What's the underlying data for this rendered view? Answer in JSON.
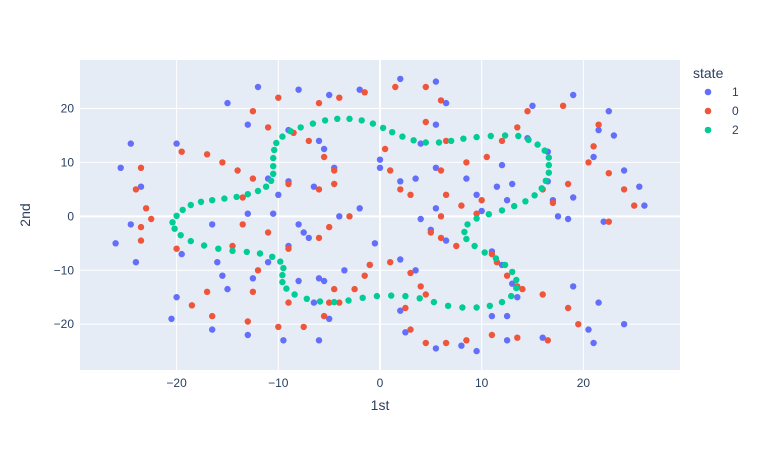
{
  "chart_data": {
    "type": "scatter",
    "title": "",
    "xlabel": "1st",
    "ylabel": "2nd",
    "xlim": [
      -29.5,
      29.5
    ],
    "ylim": [
      -28.5,
      29
    ],
    "xticks": [
      -20,
      -10,
      0,
      10,
      20
    ],
    "yticks": [
      -20,
      -10,
      0,
      10,
      20
    ],
    "grid": true,
    "plot_bg": "#e5ecf6",
    "grid_color": "#ffffff",
    "legend": {
      "title": "state",
      "position": "right"
    },
    "series": [
      {
        "name": "1",
        "color": "#636efa",
        "points": [
          [
            -12,
            24
          ],
          [
            -8,
            23.5
          ],
          [
            -5,
            22.5
          ],
          [
            -2,
            23.5
          ],
          [
            2,
            25.5
          ],
          [
            5.5,
            25
          ],
          [
            6.5,
            21
          ],
          [
            -15,
            21
          ],
          [
            -13,
            17
          ],
          [
            -20,
            13.5
          ],
          [
            -24.5,
            13.5
          ],
          [
            -25.5,
            9
          ],
          [
            -23.5,
            5.5
          ],
          [
            -24.5,
            -1.5
          ],
          [
            -26,
            -5
          ],
          [
            -24,
            -8.5
          ],
          [
            -19.5,
            -7
          ],
          [
            -20,
            -15
          ],
          [
            -20.5,
            -19
          ],
          [
            -16.5,
            -21
          ],
          [
            -13,
            -22
          ],
          [
            -9.5,
            -23
          ],
          [
            -6,
            -23
          ],
          [
            -5,
            -19
          ],
          [
            -6.5,
            -16
          ],
          [
            -5.5,
            -12
          ],
          [
            -3.5,
            -10
          ],
          [
            -1,
            -9
          ],
          [
            -9,
            16
          ],
          [
            -6,
            14
          ],
          [
            -5.5,
            12.5
          ],
          [
            -4.5,
            9
          ],
          [
            -6.5,
            5.5
          ],
          [
            -9,
            6.5
          ],
          [
            -11,
            7
          ],
          [
            -10,
            4
          ],
          [
            -13,
            0.5
          ],
          [
            -10.5,
            0.5
          ],
          [
            -8,
            -1.5
          ],
          [
            -7,
            -4
          ],
          [
            -7.5,
            -3
          ],
          [
            -4,
            0
          ],
          [
            -2,
            1.5
          ],
          [
            -9,
            -5.5
          ],
          [
            -12.5,
            -11.5
          ],
          [
            -15,
            -13.5
          ],
          [
            -15.5,
            -11
          ],
          [
            -16,
            -8.5
          ],
          [
            -16.5,
            -1.5
          ],
          [
            -11,
            -8.5
          ],
          [
            -8,
            -12
          ],
          [
            -6,
            -11.5
          ],
          [
            -0.5,
            -5
          ],
          [
            2,
            -8
          ],
          [
            3.5,
            -10
          ],
          [
            2,
            -17.5
          ],
          [
            2.5,
            -21.5
          ],
          [
            5.5,
            -24.5
          ],
          [
            8,
            -24
          ],
          [
            9.5,
            -25
          ],
          [
            11,
            -18.5
          ],
          [
            12.5,
            -18.5
          ],
          [
            12.5,
            -23
          ],
          [
            16,
            -22.5
          ],
          [
            19,
            -13
          ],
          [
            20.5,
            -21
          ],
          [
            21,
            -23.5
          ],
          [
            21.5,
            -16
          ],
          [
            24,
            -20
          ],
          [
            0,
            10.5
          ],
          [
            0,
            9
          ],
          [
            2,
            6.5
          ],
          [
            3.5,
            7
          ],
          [
            4,
            13.5
          ],
          [
            5.5,
            17
          ],
          [
            5.5,
            9
          ],
          [
            8.5,
            7
          ],
          [
            9.5,
            4
          ],
          [
            10,
            1
          ],
          [
            11.5,
            5.5
          ],
          [
            12,
            9.5
          ],
          [
            12.5,
            3
          ],
          [
            13,
            6
          ],
          [
            14.5,
            14.5
          ],
          [
            15,
            20.5
          ],
          [
            16.5,
            12
          ],
          [
            16.5,
            6.5
          ],
          [
            17,
            3
          ],
          [
            17.5,
            0
          ],
          [
            19,
            22.5
          ],
          [
            21.5,
            16
          ],
          [
            22.5,
            19.5
          ],
          [
            23,
            15
          ],
          [
            24,
            8.5
          ],
          [
            25.5,
            5.5
          ],
          [
            26,
            2
          ],
          [
            21,
            11
          ],
          [
            19,
            3.5
          ],
          [
            18.5,
            -0.5
          ],
          [
            22,
            -1
          ],
          [
            4,
            -0.5
          ],
          [
            5,
            -2.5
          ],
          [
            5.5,
            1.5
          ],
          [
            6.5,
            -4.5
          ],
          [
            11,
            -6.5
          ],
          [
            12,
            -9
          ],
          [
            13,
            -12.5
          ],
          [
            13.5,
            -15
          ]
        ]
      },
      {
        "name": "0",
        "color": "#ef553b",
        "points": [
          [
            -10,
            22
          ],
          [
            -6,
            21
          ],
          [
            -4,
            22
          ],
          [
            -1.5,
            23
          ],
          [
            1.5,
            24
          ],
          [
            4.5,
            24
          ],
          [
            6,
            21.5
          ],
          [
            -12.5,
            19.5
          ],
          [
            -11,
            16.5
          ],
          [
            -8.5,
            15.5
          ],
          [
            -7,
            14
          ],
          [
            -5.5,
            11
          ],
          [
            -4.5,
            8.5
          ],
          [
            -4.5,
            6
          ],
          [
            -6,
            5
          ],
          [
            -9,
            6
          ],
          [
            -12.5,
            7
          ],
          [
            -14,
            8.5
          ],
          [
            -15.5,
            10
          ],
          [
            -17,
            11.5
          ],
          [
            -19.5,
            12
          ],
          [
            -23.5,
            9
          ],
          [
            -24,
            5
          ],
          [
            -23,
            1.5
          ],
          [
            -22.5,
            -0.5
          ],
          [
            -23.5,
            -2
          ],
          [
            -23.5,
            -4.5
          ],
          [
            -20,
            -6
          ],
          [
            -18.5,
            -16.5
          ],
          [
            -17,
            -14
          ],
          [
            -16.5,
            -18.5
          ],
          [
            -13,
            -19.5
          ],
          [
            -10,
            -20.5
          ],
          [
            -7.5,
            -20.5
          ],
          [
            -5.5,
            -18.5
          ],
          [
            -4,
            -16
          ],
          [
            -2.5,
            -13.5
          ],
          [
            -1.5,
            -11
          ],
          [
            -1,
            -9
          ],
          [
            1,
            -8.5
          ],
          [
            3,
            -10.5
          ],
          [
            4,
            -13
          ],
          [
            4.5,
            -14.5
          ],
          [
            2.5,
            -17
          ],
          [
            3,
            -21
          ],
          [
            4.5,
            -23.5
          ],
          [
            6.5,
            -23.5
          ],
          [
            8.5,
            -23
          ],
          [
            11,
            -22
          ],
          [
            13.5,
            -22.5
          ],
          [
            16.5,
            -23
          ],
          [
            18.5,
            -17
          ],
          [
            19.5,
            -20
          ],
          [
            -13.5,
            3.5
          ],
          [
            -13.5,
            -1.5
          ],
          [
            -11,
            -3
          ],
          [
            -9,
            -6
          ],
          [
            -6,
            -4
          ],
          [
            -5,
            -2
          ],
          [
            -3,
            0
          ],
          [
            -14.5,
            -5.5
          ],
          [
            -12,
            -10
          ],
          [
            -12.5,
            -14
          ],
          [
            -9,
            -16
          ],
          [
            -5,
            -16
          ],
          [
            -4.5,
            -13.5
          ],
          [
            0.5,
            12.5
          ],
          [
            1,
            8.5
          ],
          [
            2,
            5
          ],
          [
            3,
            4
          ],
          [
            6,
            8.5
          ],
          [
            6.5,
            4
          ],
          [
            8.5,
            10
          ],
          [
            10.5,
            11
          ],
          [
            12,
            14
          ],
          [
            13.5,
            16.5
          ],
          [
            14.5,
            19.5
          ],
          [
            16,
            5
          ],
          [
            17,
            2.5
          ],
          [
            18.5,
            6
          ],
          [
            18,
            20.5
          ],
          [
            20.5,
            10
          ],
          [
            21.5,
            17
          ],
          [
            22.5,
            8
          ],
          [
            24,
            5
          ],
          [
            25,
            2
          ],
          [
            22.5,
            -1
          ],
          [
            21,
            13
          ],
          [
            4.5,
            17.5
          ],
          [
            6.5,
            14
          ],
          [
            8,
            2
          ],
          [
            9.5,
            0.5
          ],
          [
            10,
            3
          ],
          [
            11,
            -7
          ],
          [
            11.5,
            -8.5
          ],
          [
            12.5,
            -11
          ],
          [
            14,
            -13.5
          ],
          [
            16,
            -14.5
          ],
          [
            6,
            0
          ],
          [
            5,
            -3
          ],
          [
            6,
            -4
          ],
          [
            7.5,
            -5.5
          ],
          [
            13.5,
            -13
          ]
        ]
      },
      {
        "name": "2",
        "color": "#00cc96",
        "points": [
          [
            -20.4,
            -1.1
          ],
          [
            -20.0,
            0.1
          ],
          [
            -19.4,
            1.2
          ],
          [
            -18.6,
            2.1
          ],
          [
            -17.6,
            2.7
          ],
          [
            -16.5,
            3.0
          ],
          [
            -15.3,
            3.3
          ],
          [
            -14.1,
            3.6
          ],
          [
            -13.0,
            4.1
          ],
          [
            -12.0,
            4.7
          ],
          [
            -11.2,
            5.5
          ],
          [
            -10.7,
            6.6
          ],
          [
            -10.5,
            7.9
          ],
          [
            -10.5,
            9.3
          ],
          [
            -10.5,
            10.8
          ],
          [
            -10.4,
            12.3
          ],
          [
            -10.2,
            13.6
          ],
          [
            -9.6,
            14.8
          ],
          [
            -8.8,
            15.8
          ],
          [
            -7.8,
            16.5
          ],
          [
            -6.6,
            17.2
          ],
          [
            -5.4,
            17.8
          ],
          [
            -4.2,
            18.1
          ],
          [
            -3.0,
            18.1
          ],
          [
            -1.8,
            17.8
          ],
          [
            -0.7,
            17.2
          ],
          [
            0.3,
            16.4
          ],
          [
            1.2,
            15.6
          ],
          [
            2.2,
            14.8
          ],
          [
            3.3,
            14.1
          ],
          [
            4.5,
            13.7
          ],
          [
            5.8,
            13.7
          ],
          [
            7.0,
            14.0
          ],
          [
            8.2,
            14.4
          ],
          [
            9.5,
            14.7
          ],
          [
            10.9,
            14.9
          ],
          [
            12.3,
            15.0
          ],
          [
            13.6,
            14.9
          ],
          [
            14.6,
            14.2
          ],
          [
            15.5,
            13.3
          ],
          [
            16.2,
            12.2
          ],
          [
            16.6,
            10.9
          ],
          [
            16.6,
            9.5
          ],
          [
            16.6,
            8.1
          ],
          [
            16.3,
            6.6
          ],
          [
            15.9,
            5.2
          ],
          [
            15.2,
            3.9
          ],
          [
            14.3,
            2.8
          ],
          [
            13.2,
            1.9
          ],
          [
            12.0,
            1.1
          ],
          [
            10.7,
            0.4
          ],
          [
            9.5,
            -0.4
          ],
          [
            8.6,
            -1.5
          ],
          [
            8.3,
            -2.9
          ],
          [
            8.5,
            -4.2
          ],
          [
            9.3,
            -5.5
          ],
          [
            10.3,
            -6.7
          ],
          [
            11.4,
            -7.8
          ],
          [
            12.3,
            -9.0
          ],
          [
            13.0,
            -10.3
          ],
          [
            13.4,
            -11.8
          ],
          [
            13.4,
            -13.3
          ],
          [
            12.9,
            -14.8
          ],
          [
            12.0,
            -15.9
          ],
          [
            10.8,
            -16.6
          ],
          [
            9.5,
            -16.9
          ],
          [
            8.1,
            -16.9
          ],
          [
            6.7,
            -16.6
          ],
          [
            5.3,
            -15.9
          ],
          [
            3.9,
            -15.2
          ],
          [
            2.5,
            -14.8
          ],
          [
            1.1,
            -14.7
          ],
          [
            -0.3,
            -14.8
          ],
          [
            -1.7,
            -15.1
          ],
          [
            -3.1,
            -15.6
          ],
          [
            -4.5,
            -15.9
          ],
          [
            -5.9,
            -15.8
          ],
          [
            -7.2,
            -15.3
          ],
          [
            -8.4,
            -14.5
          ],
          [
            -9.2,
            -13.4
          ],
          [
            -9.6,
            -12.2
          ],
          [
            -9.6,
            -10.9
          ],
          [
            -9.5,
            -9.6
          ],
          [
            -9.8,
            -8.4
          ],
          [
            -10.6,
            -7.5
          ],
          [
            -11.8,
            -6.9
          ],
          [
            -13.1,
            -6.6
          ],
          [
            -14.5,
            -6.4
          ],
          [
            -15.9,
            -6.0
          ],
          [
            -17.3,
            -5.4
          ],
          [
            -18.6,
            -4.6
          ],
          [
            -19.6,
            -3.5
          ],
          [
            -20.2,
            -2.3
          ]
        ]
      }
    ]
  }
}
